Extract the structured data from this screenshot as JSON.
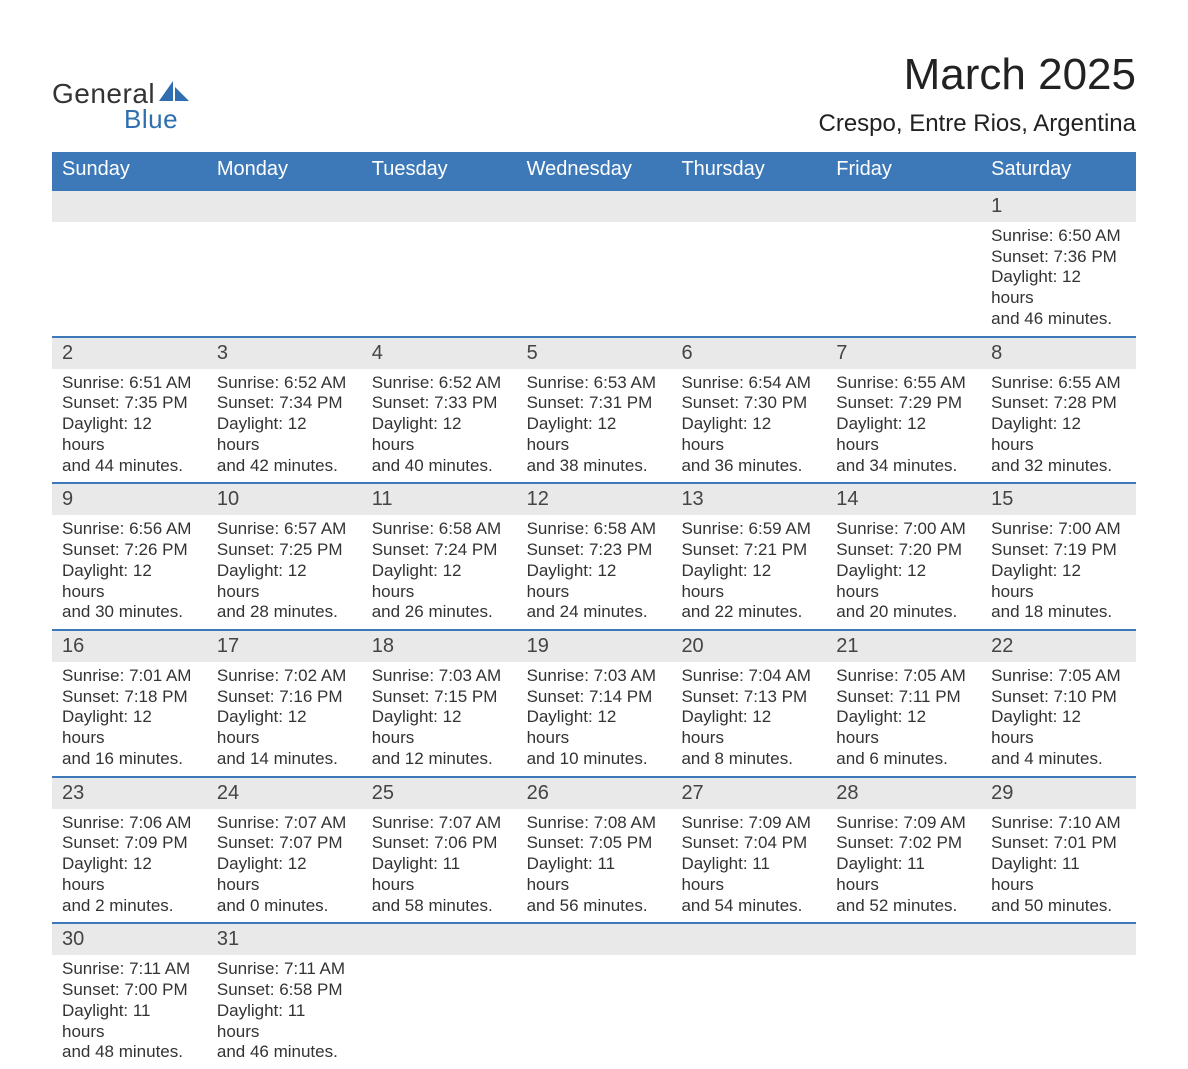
{
  "branding": {
    "word1": "General",
    "word2": "Blue",
    "sail_color": "#2f6fb0",
    "text_dark": "#333333"
  },
  "header": {
    "title": "March 2025",
    "location": "Crespo, Entre Rios, Argentina"
  },
  "colors": {
    "header_bar": "#3d79b8",
    "strip_bg": "#e9e9e9",
    "strip_border": "#3d79b8",
    "page_bg": "#ffffff"
  },
  "days_of_week": [
    "Sunday",
    "Monday",
    "Tuesday",
    "Wednesday",
    "Thursday",
    "Friday",
    "Saturday"
  ],
  "weeks": [
    [
      null,
      null,
      null,
      null,
      null,
      null,
      {
        "d": "1",
        "sunrise": "Sunrise: 6:50 AM",
        "sunset": "Sunset: 7:36 PM",
        "dl1": "Daylight: 12 hours",
        "dl2": "and 46 minutes."
      }
    ],
    [
      {
        "d": "2",
        "sunrise": "Sunrise: 6:51 AM",
        "sunset": "Sunset: 7:35 PM",
        "dl1": "Daylight: 12 hours",
        "dl2": "and 44 minutes."
      },
      {
        "d": "3",
        "sunrise": "Sunrise: 6:52 AM",
        "sunset": "Sunset: 7:34 PM",
        "dl1": "Daylight: 12 hours",
        "dl2": "and 42 minutes."
      },
      {
        "d": "4",
        "sunrise": "Sunrise: 6:52 AM",
        "sunset": "Sunset: 7:33 PM",
        "dl1": "Daylight: 12 hours",
        "dl2": "and 40 minutes."
      },
      {
        "d": "5",
        "sunrise": "Sunrise: 6:53 AM",
        "sunset": "Sunset: 7:31 PM",
        "dl1": "Daylight: 12 hours",
        "dl2": "and 38 minutes."
      },
      {
        "d": "6",
        "sunrise": "Sunrise: 6:54 AM",
        "sunset": "Sunset: 7:30 PM",
        "dl1": "Daylight: 12 hours",
        "dl2": "and 36 minutes."
      },
      {
        "d": "7",
        "sunrise": "Sunrise: 6:55 AM",
        "sunset": "Sunset: 7:29 PM",
        "dl1": "Daylight: 12 hours",
        "dl2": "and 34 minutes."
      },
      {
        "d": "8",
        "sunrise": "Sunrise: 6:55 AM",
        "sunset": "Sunset: 7:28 PM",
        "dl1": "Daylight: 12 hours",
        "dl2": "and 32 minutes."
      }
    ],
    [
      {
        "d": "9",
        "sunrise": "Sunrise: 6:56 AM",
        "sunset": "Sunset: 7:26 PM",
        "dl1": "Daylight: 12 hours",
        "dl2": "and 30 minutes."
      },
      {
        "d": "10",
        "sunrise": "Sunrise: 6:57 AM",
        "sunset": "Sunset: 7:25 PM",
        "dl1": "Daylight: 12 hours",
        "dl2": "and 28 minutes."
      },
      {
        "d": "11",
        "sunrise": "Sunrise: 6:58 AM",
        "sunset": "Sunset: 7:24 PM",
        "dl1": "Daylight: 12 hours",
        "dl2": "and 26 minutes."
      },
      {
        "d": "12",
        "sunrise": "Sunrise: 6:58 AM",
        "sunset": "Sunset: 7:23 PM",
        "dl1": "Daylight: 12 hours",
        "dl2": "and 24 minutes."
      },
      {
        "d": "13",
        "sunrise": "Sunrise: 6:59 AM",
        "sunset": "Sunset: 7:21 PM",
        "dl1": "Daylight: 12 hours",
        "dl2": "and 22 minutes."
      },
      {
        "d": "14",
        "sunrise": "Sunrise: 7:00 AM",
        "sunset": "Sunset: 7:20 PM",
        "dl1": "Daylight: 12 hours",
        "dl2": "and 20 minutes."
      },
      {
        "d": "15",
        "sunrise": "Sunrise: 7:00 AM",
        "sunset": "Sunset: 7:19 PM",
        "dl1": "Daylight: 12 hours",
        "dl2": "and 18 minutes."
      }
    ],
    [
      {
        "d": "16",
        "sunrise": "Sunrise: 7:01 AM",
        "sunset": "Sunset: 7:18 PM",
        "dl1": "Daylight: 12 hours",
        "dl2": "and 16 minutes."
      },
      {
        "d": "17",
        "sunrise": "Sunrise: 7:02 AM",
        "sunset": "Sunset: 7:16 PM",
        "dl1": "Daylight: 12 hours",
        "dl2": "and 14 minutes."
      },
      {
        "d": "18",
        "sunrise": "Sunrise: 7:03 AM",
        "sunset": "Sunset: 7:15 PM",
        "dl1": "Daylight: 12 hours",
        "dl2": "and 12 minutes."
      },
      {
        "d": "19",
        "sunrise": "Sunrise: 7:03 AM",
        "sunset": "Sunset: 7:14 PM",
        "dl1": "Daylight: 12 hours",
        "dl2": "and 10 minutes."
      },
      {
        "d": "20",
        "sunrise": "Sunrise: 7:04 AM",
        "sunset": "Sunset: 7:13 PM",
        "dl1": "Daylight: 12 hours",
        "dl2": "and 8 minutes."
      },
      {
        "d": "21",
        "sunrise": "Sunrise: 7:05 AM",
        "sunset": "Sunset: 7:11 PM",
        "dl1": "Daylight: 12 hours",
        "dl2": "and 6 minutes."
      },
      {
        "d": "22",
        "sunrise": "Sunrise: 7:05 AM",
        "sunset": "Sunset: 7:10 PM",
        "dl1": "Daylight: 12 hours",
        "dl2": "and 4 minutes."
      }
    ],
    [
      {
        "d": "23",
        "sunrise": "Sunrise: 7:06 AM",
        "sunset": "Sunset: 7:09 PM",
        "dl1": "Daylight: 12 hours",
        "dl2": "and 2 minutes."
      },
      {
        "d": "24",
        "sunrise": "Sunrise: 7:07 AM",
        "sunset": "Sunset: 7:07 PM",
        "dl1": "Daylight: 12 hours",
        "dl2": "and 0 minutes."
      },
      {
        "d": "25",
        "sunrise": "Sunrise: 7:07 AM",
        "sunset": "Sunset: 7:06 PM",
        "dl1": "Daylight: 11 hours",
        "dl2": "and 58 minutes."
      },
      {
        "d": "26",
        "sunrise": "Sunrise: 7:08 AM",
        "sunset": "Sunset: 7:05 PM",
        "dl1": "Daylight: 11 hours",
        "dl2": "and 56 minutes."
      },
      {
        "d": "27",
        "sunrise": "Sunrise: 7:09 AM",
        "sunset": "Sunset: 7:04 PM",
        "dl1": "Daylight: 11 hours",
        "dl2": "and 54 minutes."
      },
      {
        "d": "28",
        "sunrise": "Sunrise: 7:09 AM",
        "sunset": "Sunset: 7:02 PM",
        "dl1": "Daylight: 11 hours",
        "dl2": "and 52 minutes."
      },
      {
        "d": "29",
        "sunrise": "Sunrise: 7:10 AM",
        "sunset": "Sunset: 7:01 PM",
        "dl1": "Daylight: 11 hours",
        "dl2": "and 50 minutes."
      }
    ],
    [
      {
        "d": "30",
        "sunrise": "Sunrise: 7:11 AM",
        "sunset": "Sunset: 7:00 PM",
        "dl1": "Daylight: 11 hours",
        "dl2": "and 48 minutes."
      },
      {
        "d": "31",
        "sunrise": "Sunrise: 7:11 AM",
        "sunset": "Sunset: 6:58 PM",
        "dl1": "Daylight: 11 hours",
        "dl2": "and 46 minutes."
      },
      null,
      null,
      null,
      null,
      null
    ]
  ]
}
